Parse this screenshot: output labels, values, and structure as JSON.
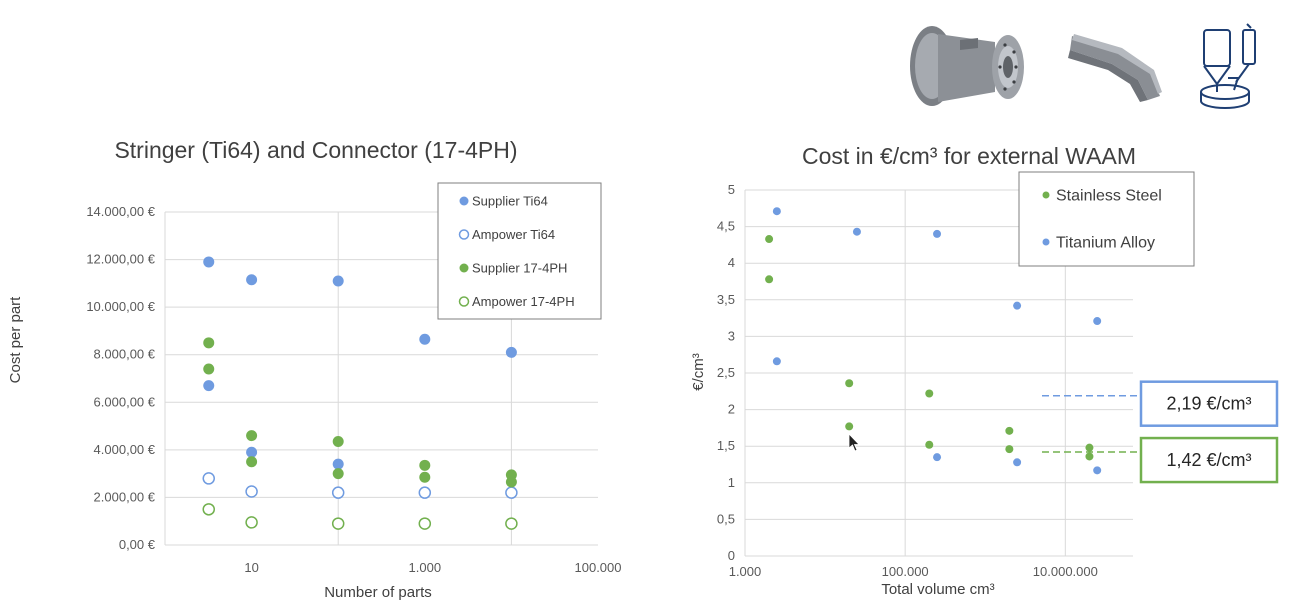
{
  "colors": {
    "blue": "#6f9be0",
    "green": "#72b04e",
    "grid": "#d9d9d9",
    "callout_blue": "#6f9be0",
    "callout_green": "#72b04e"
  },
  "icons": [
    "flanged-connector-part-icon",
    "stringer-profile-part-icon",
    "waam-process-icon"
  ],
  "chart_data": [
    {
      "type": "scatter",
      "title": "Stringer (Ti64) and Connector (17-4PH)",
      "xlabel": "Number of parts",
      "ylabel": "Cost per part",
      "x_scale": "log",
      "xlim": [
        1,
        100000
      ],
      "ylim": [
        0,
        14000
      ],
      "x_ticks": [
        {
          "value": 10,
          "label": "10"
        },
        {
          "value": 1000,
          "label": "1.000"
        },
        {
          "value": 100000,
          "label": "100.000"
        }
      ],
      "y_ticks": [
        {
          "value": 0,
          "label": "0,00 €"
        },
        {
          "value": 2000,
          "label": "2.000,00 €"
        },
        {
          "value": 4000,
          "label": "4.000,00 €"
        },
        {
          "value": 6000,
          "label": "6.000,00 €"
        },
        {
          "value": 8000,
          "label": "8.000,00 €"
        },
        {
          "value": 10000,
          "label": "10.000,00 €"
        },
        {
          "value": 12000,
          "label": "12.000,00 €"
        },
        {
          "value": 14000,
          "label": "14.000,00 €"
        }
      ],
      "grid": "vertical and horizontal",
      "legend_position": "top-right",
      "series": [
        {
          "name": "Supplier Ti64",
          "marker": "filled",
          "color": "#6f9be0",
          "points": [
            [
              3.2,
              11900
            ],
            [
              10,
              11150
            ],
            [
              100,
              11100
            ],
            [
              1000,
              8650
            ],
            [
              10000,
              8100
            ],
            [
              3.2,
              6700
            ],
            [
              10,
              3900
            ],
            [
              100,
              3400
            ]
          ]
        },
        {
          "name": "Ampower Ti64",
          "marker": "hollow",
          "color": "#6f9be0",
          "points": [
            [
              3.2,
              2800
            ],
            [
              10,
              2250
            ],
            [
              100,
              2200
            ],
            [
              1000,
              2200
            ],
            [
              10000,
              2200
            ]
          ]
        },
        {
          "name": "Supplier 17-4PH",
          "marker": "filled",
          "color": "#72b04e",
          "points": [
            [
              3.2,
              8500
            ],
            [
              3.2,
              7400
            ],
            [
              10,
              4600
            ],
            [
              10,
              3500
            ],
            [
              100,
              4350
            ],
            [
              100,
              3000
            ],
            [
              1000,
              3350
            ],
            [
              1000,
              2850
            ],
            [
              10000,
              2950
            ],
            [
              10000,
              2650
            ]
          ]
        },
        {
          "name": "Ampower 17-4PH",
          "marker": "hollow",
          "color": "#72b04e",
          "points": [
            [
              3.2,
              1500
            ],
            [
              10,
              950
            ],
            [
              100,
              900
            ],
            [
              1000,
              900
            ],
            [
              10000,
              900
            ]
          ]
        }
      ]
    },
    {
      "type": "scatter",
      "title": "Cost in €/cm³ for external WAAM",
      "xlabel": "Total volume cm³",
      "ylabel": "€/cm³",
      "x_scale": "log",
      "xlim": [
        1000,
        70000000
      ],
      "ylim": [
        0,
        5
      ],
      "x_ticks": [
        {
          "value": 1000,
          "label": "1.000"
        },
        {
          "value": 100000,
          "label": "100.000"
        },
        {
          "value": 10000000,
          "label": "10.000.000"
        }
      ],
      "y_ticks": [
        {
          "value": 0,
          "label": "0"
        },
        {
          "value": 0.5,
          "label": "0,5"
        },
        {
          "value": 1,
          "label": "1"
        },
        {
          "value": 1.5,
          "label": "1,5"
        },
        {
          "value": 2,
          "label": "2"
        },
        {
          "value": 2.5,
          "label": "2,5"
        },
        {
          "value": 3,
          "label": "3"
        },
        {
          "value": 3.5,
          "label": "3,5"
        },
        {
          "value": 4,
          "label": "4"
        },
        {
          "value": 4.5,
          "label": "4,5"
        },
        {
          "value": 5,
          "label": "5"
        }
      ],
      "grid": "vertical and horizontal",
      "legend_position": "top-right",
      "series": [
        {
          "name": "Stainless Steel",
          "marker": "filled",
          "color": "#72b04e",
          "points": [
            [
              2000,
              4.33
            ],
            [
              2000,
              3.78
            ],
            [
              20000,
              2.36
            ],
            [
              20000,
              1.77
            ],
            [
              200000,
              2.22
            ],
            [
              200000,
              1.52
            ],
            [
              2000000,
              1.71
            ],
            [
              2000000,
              1.46
            ],
            [
              20000000,
              1.48
            ],
            [
              20000000,
              1.36
            ]
          ]
        },
        {
          "name": "Titanium Alloy",
          "marker": "filled",
          "color": "#6f9be0",
          "points": [
            [
              2500,
              4.71
            ],
            [
              2500,
              2.66
            ],
            [
              25000,
              4.43
            ],
            [
              250000,
              4.4
            ],
            [
              250000,
              1.35
            ],
            [
              2500000,
              3.42
            ],
            [
              2500000,
              1.28
            ],
            [
              25000000,
              3.21
            ],
            [
              25000000,
              1.17
            ]
          ]
        }
      ],
      "reference_lines": [
        {
          "value": 2.19,
          "label": "2,19 €/cm³",
          "color": "#6f9be0"
        },
        {
          "value": 1.42,
          "label": "1,42 €/cm³",
          "color": "#72b04e"
        }
      ]
    }
  ]
}
